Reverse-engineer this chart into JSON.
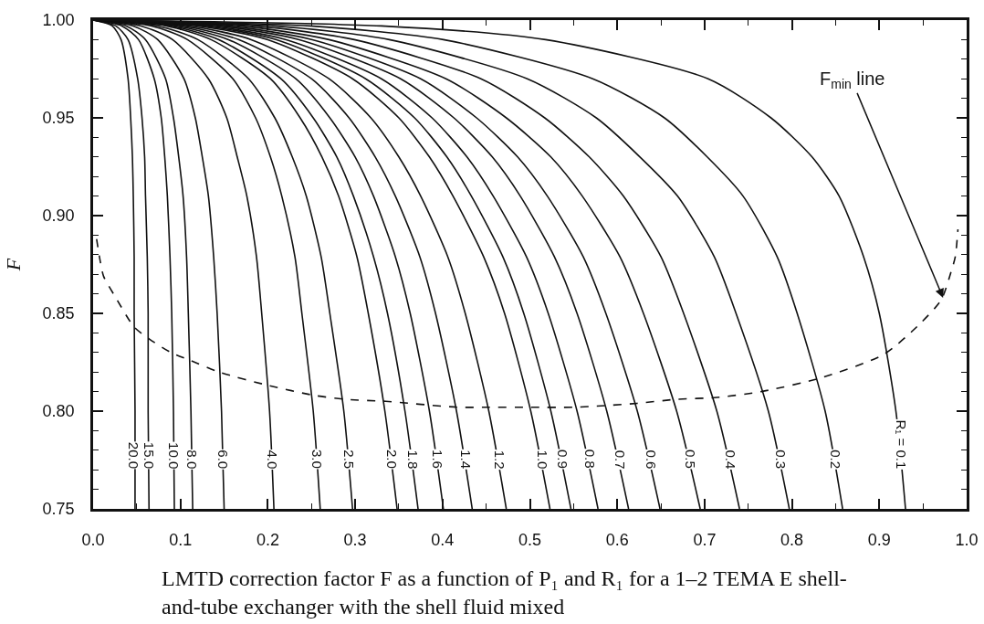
{
  "chart_data": {
    "type": "line",
    "ylabel": "F",
    "annotations": [
      {
        "text": "F$_{min}$ line",
        "x": 0.973,
        "y": 0.858
      },
      "LMTD correction factor F as a function of P₁ and R₁ for a 1–2 TEMA E shell-and-tube exchanger with the shell fluid mixed"
    ],
    "xlim": [
      0,
      1
    ],
    "ylim": [
      0.75,
      1
    ],
    "xticks": [
      {
        "value": 0,
        "label": "0.0"
      },
      {
        "value": 0.05,
        "label": null
      },
      0.1,
      {
        "value": 0.15,
        "label": null
      },
      0.2,
      {
        "value": 0.25,
        "label": null
      },
      0.3,
      {
        "value": 0.35,
        "label": null
      },
      0.4,
      {
        "value": 0.45,
        "label": null
      },
      0.5,
      {
        "value": 0.55,
        "label": null
      },
      0.6,
      {
        "value": 0.65,
        "label": null
      },
      0.7,
      {
        "value": 0.75,
        "label": null
      },
      0.8,
      {
        "value": 0.85,
        "label": null
      },
      0.9,
      {
        "value": 0.95,
        "label": null
      },
      {
        "value": 1,
        "label": "1.0"
      }
    ],
    "yticks": [
      0.75,
      {
        "value": 0.76,
        "label": null
      },
      {
        "value": 0.77,
        "label": null
      },
      {
        "value": 0.78,
        "label": null
      },
      {
        "value": 0.79,
        "label": null
      },
      {
        "value": 0.8,
        "label": "0.80"
      },
      {
        "value": 0.81,
        "label": null
      },
      {
        "value": 0.82,
        "label": null
      },
      {
        "value": 0.83,
        "label": null
      },
      {
        "value": 0.84,
        "label": null
      },
      0.85,
      {
        "value": 0.86,
        "label": null
      },
      {
        "value": 0.87,
        "label": null
      },
      {
        "value": 0.88,
        "label": null
      },
      {
        "value": 0.89,
        "label": null
      },
      {
        "value": 0.9,
        "label": "0.90"
      },
      {
        "value": 0.91,
        "label": null
      },
      {
        "value": 0.92,
        "label": null
      },
      {
        "value": 0.93,
        "label": null
      },
      {
        "value": 0.94,
        "label": null
      },
      0.95,
      {
        "value": 0.96,
        "label": null
      },
      {
        "value": 0.97,
        "label": null
      },
      {
        "value": 0.98,
        "label": null
      },
      {
        "value": 0.99,
        "label": null
      },
      {
        "value": 1,
        "label": "1.00"
      }
    ],
    "grid": false,
    "legend": false,
    "marker": "none",
    "line_style": "solid",
    "series": [
      {
        "name": "20.0",
        "color": "#111111",
        "x": [
          0,
          0.022,
          0.032,
          0.04,
          0.043,
          0.045,
          0.046,
          0.047,
          0.047,
          0.048,
          0.048
        ],
        "values": [
          1,
          0.997,
          0.99,
          0.97,
          0.95,
          0.93,
          0.91,
          0.879,
          0.85,
          0.8,
          0.75
        ]
      },
      {
        "name": "15.0",
        "color": "#111111",
        "x": [
          0,
          0.026,
          0.04,
          0.051,
          0.056,
          0.059,
          0.06,
          0.062,
          0.063,
          0.063,
          0.064
        ],
        "values": [
          1,
          0.997,
          0.99,
          0.97,
          0.95,
          0.93,
          0.91,
          0.879,
          0.85,
          0.8,
          0.75
        ]
      },
      {
        "name": "10.0",
        "color": "#111111",
        "x": [
          0,
          0.033,
          0.052,
          0.07,
          0.078,
          0.082,
          0.085,
          0.088,
          0.09,
          0.092,
          0.093
        ],
        "values": [
          1,
          0.997,
          0.99,
          0.97,
          0.95,
          0.93,
          0.91,
          0.879,
          0.85,
          0.8,
          0.75
        ]
      },
      {
        "name": "8.0",
        "color": "#111111",
        "x": [
          0,
          0.038,
          0.06,
          0.083,
          0.092,
          0.098,
          0.103,
          0.107,
          0.109,
          0.112,
          0.114
        ],
        "values": [
          1,
          0.997,
          0.99,
          0.97,
          0.95,
          0.93,
          0.91,
          0.879,
          0.85,
          0.8,
          0.75
        ]
      },
      {
        "name": "6.0",
        "color": "#111111",
        "x": [
          0,
          0.046,
          0.074,
          0.104,
          0.117,
          0.125,
          0.132,
          0.138,
          0.142,
          0.147,
          0.15
        ],
        "values": [
          1,
          0.997,
          0.99,
          0.97,
          0.95,
          0.93,
          0.91,
          0.879,
          0.85,
          0.8,
          0.75
        ]
      },
      {
        "name": "4.0",
        "color": "#111111",
        "x": [
          0,
          0.055,
          0.091,
          0.132,
          0.153,
          0.165,
          0.176,
          0.187,
          0.193,
          0.202,
          0.207
        ],
        "values": [
          1,
          0.997,
          0.99,
          0.97,
          0.95,
          0.93,
          0.91,
          0.879,
          0.85,
          0.8,
          0.75
        ]
      },
      {
        "name": "3.0",
        "color": "#111111",
        "x": [
          0,
          0.067,
          0.108,
          0.16,
          0.186,
          0.203,
          0.216,
          0.231,
          0.239,
          0.252,
          0.26
        ],
        "values": [
          1,
          0.997,
          0.99,
          0.97,
          0.95,
          0.93,
          0.91,
          0.879,
          0.85,
          0.8,
          0.75
        ]
      },
      {
        "name": "2.5",
        "color": "#111111",
        "x": [
          0,
          0.074,
          0.12,
          0.178,
          0.208,
          0.228,
          0.244,
          0.261,
          0.271,
          0.287,
          0.297
        ],
        "values": [
          1,
          0.997,
          0.99,
          0.97,
          0.95,
          0.93,
          0.91,
          0.879,
          0.85,
          0.8,
          0.75
        ]
      },
      {
        "name": "2.0",
        "color": "#111111",
        "x": [
          0,
          0.084,
          0.135,
          0.203,
          0.237,
          0.262,
          0.281,
          0.302,
          0.315,
          0.334,
          0.348
        ],
        "values": [
          1,
          0.997,
          0.99,
          0.97,
          0.95,
          0.93,
          0.91,
          0.879,
          0.85,
          0.8,
          0.75
        ]
      },
      {
        "name": "1.8",
        "color": "#111111",
        "x": [
          0,
          0.089,
          0.144,
          0.215,
          0.252,
          0.279,
          0.298,
          0.321,
          0.337,
          0.357,
          0.372
        ],
        "values": [
          1,
          0.997,
          0.99,
          0.97,
          0.95,
          0.93,
          0.91,
          0.879,
          0.85,
          0.8,
          0.75
        ]
      },
      {
        "name": "1.6",
        "color": "#111111",
        "x": [
          0,
          0.095,
          0.155,
          0.232,
          0.271,
          0.3,
          0.321,
          0.346,
          0.363,
          0.385,
          0.401
        ],
        "values": [
          1,
          0.997,
          0.99,
          0.97,
          0.95,
          0.93,
          0.91,
          0.879,
          0.85,
          0.8,
          0.75
        ]
      },
      {
        "name": "1.4",
        "color": "#111111",
        "x": [
          0,
          0.102,
          0.167,
          0.25,
          0.293,
          0.323,
          0.346,
          0.374,
          0.392,
          0.416,
          0.434
        ],
        "values": [
          1,
          0.997,
          0.99,
          0.97,
          0.95,
          0.93,
          0.91,
          0.879,
          0.85,
          0.8,
          0.75
        ]
      },
      {
        "name": "1.2",
        "color": "#111111",
        "x": [
          0,
          0.11,
          0.181,
          0.27,
          0.318,
          0.35,
          0.375,
          0.406,
          0.426,
          0.453,
          0.473
        ],
        "values": [
          1,
          0.997,
          0.99,
          0.97,
          0.95,
          0.93,
          0.91,
          0.879,
          0.85,
          0.8,
          0.75
        ]
      },
      {
        "name": "1.0",
        "color": "#111111",
        "x": [
          0,
          0.12,
          0.2,
          0.297,
          0.35,
          0.385,
          0.412,
          0.447,
          0.471,
          0.501,
          0.523
        ],
        "values": [
          1,
          0.997,
          0.99,
          0.97,
          0.95,
          0.93,
          0.91,
          0.879,
          0.85,
          0.8,
          0.75
        ]
      },
      {
        "name": "0.9",
        "color": "#111111",
        "x": [
          0,
          0.127,
          0.21,
          0.312,
          0.368,
          0.405,
          0.433,
          0.469,
          0.493,
          0.524,
          0.547
        ],
        "values": [
          1,
          0.997,
          0.99,
          0.97,
          0.95,
          0.93,
          0.91,
          0.879,
          0.85,
          0.8,
          0.75
        ]
      },
      {
        "name": "0.8",
        "color": "#111111",
        "x": [
          0,
          0.134,
          0.221,
          0.33,
          0.388,
          0.428,
          0.458,
          0.496,
          0.521,
          0.554,
          0.578
        ],
        "values": [
          1,
          0.997,
          0.99,
          0.97,
          0.95,
          0.93,
          0.91,
          0.879,
          0.85,
          0.8,
          0.75
        ]
      },
      {
        "name": "0.7",
        "color": "#111111",
        "x": [
          0,
          0.144,
          0.236,
          0.352,
          0.413,
          0.457,
          0.489,
          0.528,
          0.554,
          0.588,
          0.613
        ],
        "values": [
          1,
          0.997,
          0.99,
          0.97,
          0.95,
          0.93,
          0.91,
          0.879,
          0.85,
          0.8,
          0.75
        ]
      },
      {
        "name": "0.6",
        "color": "#111111",
        "x": [
          0,
          0.154,
          0.251,
          0.375,
          0.439,
          0.486,
          0.52,
          0.561,
          0.587,
          0.623,
          0.649
        ],
        "values": [
          1,
          0.997,
          0.99,
          0.97,
          0.95,
          0.93,
          0.91,
          0.879,
          0.85,
          0.8,
          0.75
        ]
      },
      {
        "name": "0.5",
        "color": "#111111",
        "x": [
          0,
          0.168,
          0.27,
          0.404,
          0.473,
          0.524,
          0.56,
          0.603,
          0.63,
          0.668,
          0.695
        ],
        "values": [
          1,
          0.997,
          0.99,
          0.97,
          0.95,
          0.93,
          0.91,
          0.879,
          0.85,
          0.8,
          0.75
        ]
      },
      {
        "name": "0.4",
        "color": "#111111",
        "x": [
          0,
          0.185,
          0.299,
          0.444,
          0.517,
          0.568,
          0.607,
          0.65,
          0.676,
          0.714,
          0.74
        ],
        "values": [
          1,
          0.997,
          0.99,
          0.97,
          0.95,
          0.93,
          0.91,
          0.879,
          0.85,
          0.8,
          0.75
        ]
      },
      {
        "name": "0.3",
        "color": "#111111",
        "x": [
          0,
          0.208,
          0.339,
          0.497,
          0.576,
          0.626,
          0.669,
          0.711,
          0.736,
          0.773,
          0.797
        ],
        "values": [
          1,
          0.997,
          0.99,
          0.97,
          0.95,
          0.93,
          0.91,
          0.879,
          0.85,
          0.8,
          0.75
        ]
      },
      {
        "name": "0.2",
        "color": "#111111",
        "x": [
          0,
          0.248,
          0.401,
          0.572,
          0.654,
          0.703,
          0.744,
          0.783,
          0.806,
          0.838,
          0.858
        ],
        "values": [
          1,
          0.997,
          0.99,
          0.97,
          0.95,
          0.93,
          0.91,
          0.879,
          0.85,
          0.8,
          0.75
        ]
      },
      {
        "name": "R₁ = 0.1",
        "color": "#111111",
        "x": [
          0,
          0.33,
          0.518,
          0.704,
          0.776,
          0.823,
          0.854,
          0.882,
          0.9,
          0.919,
          0.93
        ],
        "values": [
          1,
          0.997,
          0.99,
          0.97,
          0.95,
          0.93,
          0.91,
          0.879,
          0.85,
          0.8,
          0.75
        ]
      },
      {
        "color": "#111111",
        "line_style": "dashed",
        "x": [
          0.004,
          0.008,
          0.012,
          0.026,
          0.047,
          0.064,
          0.089,
          0.111,
          0.144,
          0.202,
          0.254,
          0.29,
          0.335,
          0.417,
          0.452,
          0.501,
          0.552,
          0.623,
          0.667,
          0.714,
          0.765,
          0.833,
          0.905,
          0.945,
          0.971,
          0.982,
          0.987,
          0.99
        ],
        "values": [
          0.888,
          0.877,
          0.869,
          0.858,
          0.843,
          0.837,
          0.83,
          0.826,
          0.82,
          0.813,
          0.808,
          0.806,
          0.805,
          0.802,
          0.802,
          0.802,
          0.802,
          0.804,
          0.806,
          0.807,
          0.81,
          0.817,
          0.829,
          0.844,
          0.857,
          0.871,
          0.879,
          0.893
        ]
      }
    ]
  }
}
